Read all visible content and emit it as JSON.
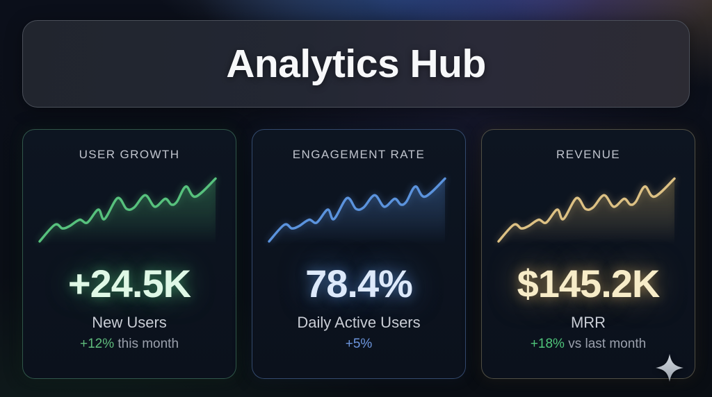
{
  "header": {
    "title": "Analytics Hub"
  },
  "cards": [
    {
      "title": "USER GROWTH",
      "value": "+24.5K",
      "label": "New Users",
      "delta": "+12%",
      "delta_suffix": " this month",
      "accent": "#57c17d",
      "glow": "rgba(87,193,125,0.45)",
      "halo": "rgba(87,193,125,0.10)",
      "fill_top": "rgba(60,150,95,0.30)",
      "border": "rgba(94,170,128,0.45)",
      "value_color": "#dff8e6",
      "value_glow": "rgba(96,220,140,0.45)",
      "delta_color": "#5fbc7c"
    },
    {
      "title": "ENGAGEMENT RATE",
      "value": "78.4%",
      "label": "Daily Active Users",
      "delta": "+5%",
      "delta_suffix": "",
      "accent": "#5b93dd",
      "glow": "rgba(91,147,221,0.45)",
      "halo": "rgba(91,147,221,0.10)",
      "fill_top": "rgba(70,120,190,0.30)",
      "border": "rgba(92,130,190,0.50)",
      "value_color": "#dde9fa",
      "value_glow": "rgba(100,160,235,0.50)",
      "delta_color": "#6d96dd"
    },
    {
      "title": "REVENUE",
      "value": "$145.2K",
      "label": "MRR",
      "delta": "+18%",
      "delta_suffix": " vs last month",
      "accent": "#ddc184",
      "glow": "rgba(221,193,132,0.45)",
      "halo": "rgba(221,193,132,0.10)",
      "fill_top": "rgba(160,135,70,0.30)",
      "border": "rgba(150,140,105,0.50)",
      "value_color": "#f7ecc8",
      "value_glow": "rgba(230,190,110,0.50)",
      "delta_color": "#4fc57a"
    }
  ],
  "sparkline_points": [
    [
      0,
      95
    ],
    [
      22,
      72
    ],
    [
      33,
      77
    ],
    [
      43,
      74
    ],
    [
      58,
      65
    ],
    [
      69,
      69
    ],
    [
      85,
      51
    ],
    [
      94,
      64
    ],
    [
      113,
      35
    ],
    [
      126,
      50
    ],
    [
      137,
      48
    ],
    [
      153,
      31
    ],
    [
      167,
      47
    ],
    [
      182,
      36
    ],
    [
      191,
      44
    ],
    [
      199,
      40
    ],
    [
      212,
      19
    ],
    [
      226,
      33
    ],
    [
      255,
      8
    ]
  ],
  "chart_data": [
    {
      "type": "line",
      "title": "USER GROWTH",
      "series": [
        {
          "name": "New Users",
          "x": [
            0,
            9,
            13,
            17,
            23,
            27,
            33,
            37,
            44,
            49,
            54,
            60,
            65,
            71,
            75,
            78,
            83,
            89,
            100
          ],
          "values": [
            5,
            28,
            23,
            26,
            35,
            31,
            49,
            36,
            65,
            50,
            52,
            69,
            53,
            64,
            56,
            60,
            81,
            67,
            92
          ]
        }
      ],
      "xlabel": "",
      "ylabel": "",
      "axes_shown": false,
      "grid": false,
      "legend": false,
      "color": "#57c17d",
      "fill": "gradient-under-line"
    },
    {
      "type": "line",
      "title": "ENGAGEMENT RATE",
      "series": [
        {
          "name": "Daily Active Users",
          "x": [
            0,
            9,
            13,
            17,
            23,
            27,
            33,
            37,
            44,
            49,
            54,
            60,
            65,
            71,
            75,
            78,
            83,
            89,
            100
          ],
          "values": [
            5,
            28,
            23,
            26,
            35,
            31,
            49,
            36,
            65,
            50,
            52,
            69,
            53,
            64,
            56,
            60,
            81,
            67,
            92
          ]
        }
      ],
      "xlabel": "",
      "ylabel": "",
      "axes_shown": false,
      "grid": false,
      "legend": false,
      "color": "#5b93dd",
      "fill": "gradient-under-line"
    },
    {
      "type": "line",
      "title": "REVENUE",
      "series": [
        {
          "name": "MRR",
          "x": [
            0,
            9,
            13,
            17,
            23,
            27,
            33,
            37,
            44,
            49,
            54,
            60,
            65,
            71,
            75,
            78,
            83,
            89,
            100
          ],
          "values": [
            5,
            28,
            23,
            26,
            35,
            31,
            49,
            36,
            65,
            50,
            52,
            69,
            53,
            64,
            56,
            60,
            81,
            67,
            92
          ]
        }
      ],
      "xlabel": "",
      "ylabel": "",
      "axes_shown": false,
      "grid": false,
      "legend": false,
      "color": "#ddc184",
      "fill": "gradient-under-line"
    }
  ],
  "footer": {
    "sparkle_icon": "four-pointed-star"
  }
}
